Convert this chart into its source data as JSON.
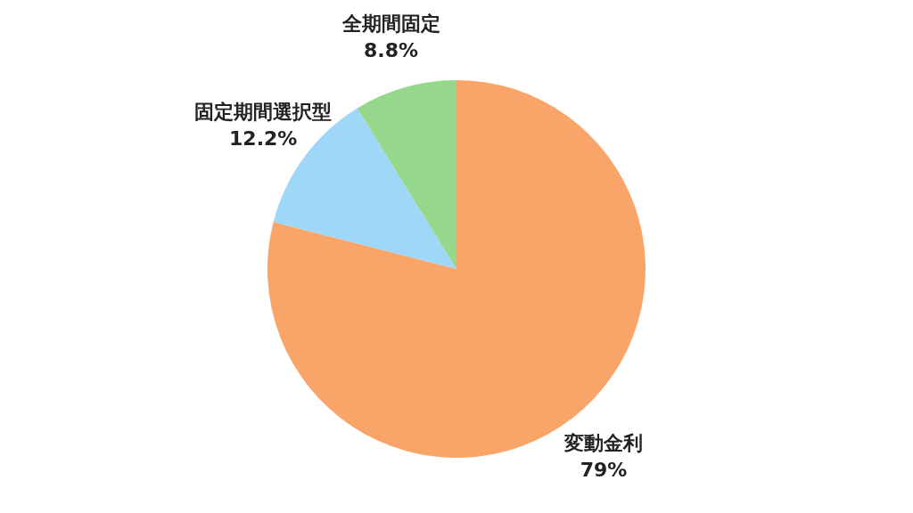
{
  "chart_data": {
    "type": "pie",
    "categories": [
      "変動金利",
      "固定期間選択型",
      "全期間固定"
    ],
    "values": [
      79,
      12.2,
      8.8
    ],
    "value_labels": [
      "79%",
      "12.2%",
      "8.8%"
    ],
    "colors": [
      "#f9a468",
      "#9fd7f9",
      "#95d78b"
    ],
    "legend": false
  }
}
